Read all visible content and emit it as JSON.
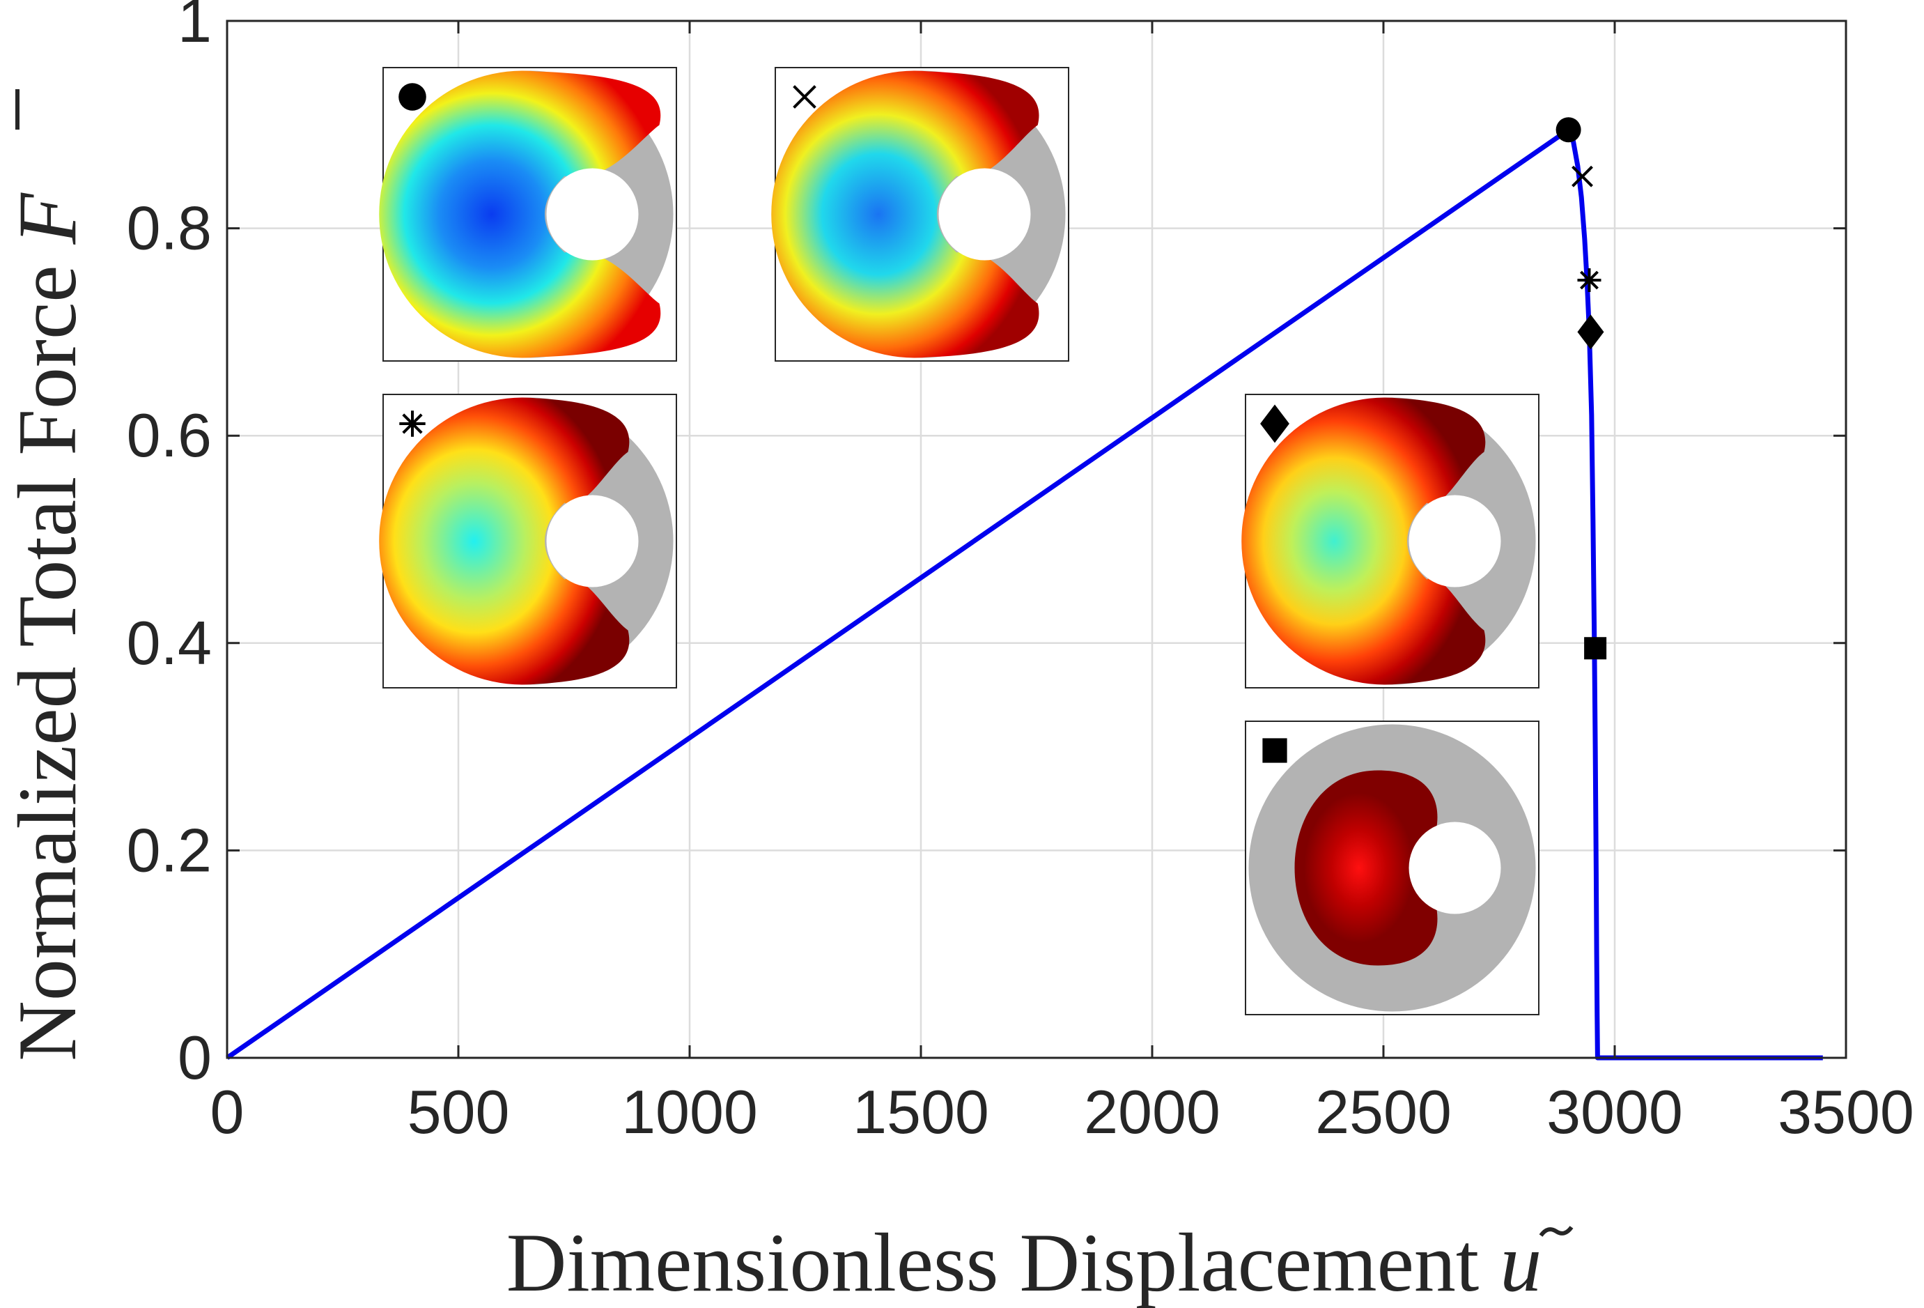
{
  "chart_data": {
    "type": "line",
    "xlabel": "Dimensionless Displacement",
    "xlabel_symbol": "u",
    "ylabel": "Normalized Total Force",
    "ylabel_symbol": "F",
    "xlim": [
      0,
      3500
    ],
    "ylim": [
      0,
      1
    ],
    "xticks": [
      0,
      500,
      1000,
      1500,
      2000,
      2500,
      3000,
      3500
    ],
    "xtick_labels": [
      "0",
      "500",
      "1000",
      "1500",
      "2000",
      "2500",
      "3000",
      "3500"
    ],
    "yticks": [
      0,
      0.2,
      0.4,
      0.6,
      0.8,
      1
    ],
    "ytick_labels": [
      "0",
      "0.2",
      "0.4",
      "0.6",
      "0.8",
      "1"
    ],
    "grid": true,
    "series": [
      {
        "color": "#0000ee",
        "x": [
          0,
          2900,
          2910,
          2920,
          2928,
          2935,
          2940,
          2945,
          2950,
          2953,
          2956,
          2958,
          2960,
          2961,
          2962,
          2963,
          2965,
          3450
        ],
        "y": [
          0,
          0.895,
          0.885,
          0.86,
          0.83,
          0.79,
          0.75,
          0.7,
          0.62,
          0.52,
          0.4,
          0.3,
          0.18,
          0.1,
          0.04,
          0,
          0,
          0
        ]
      }
    ],
    "markers": [
      {
        "symbol": "circle",
        "x": 2900,
        "y": 0.895
      },
      {
        "symbol": "cross",
        "x": 2930,
        "y": 0.85
      },
      {
        "symbol": "asterisk",
        "x": 2945,
        "y": 0.75
      },
      {
        "symbol": "diamond",
        "x": 2948,
        "y": 0.7
      },
      {
        "symbol": "square",
        "x": 2958,
        "y": 0.395
      }
    ],
    "insets": [
      {
        "marker": "circle",
        "phase": 0.0
      },
      {
        "marker": "cross",
        "phase": 0.22
      },
      {
        "marker": "asterisk",
        "phase": 0.5
      },
      {
        "marker": "diamond",
        "phase": 0.6
      },
      {
        "marker": "square",
        "phase": 1.0
      }
    ]
  }
}
